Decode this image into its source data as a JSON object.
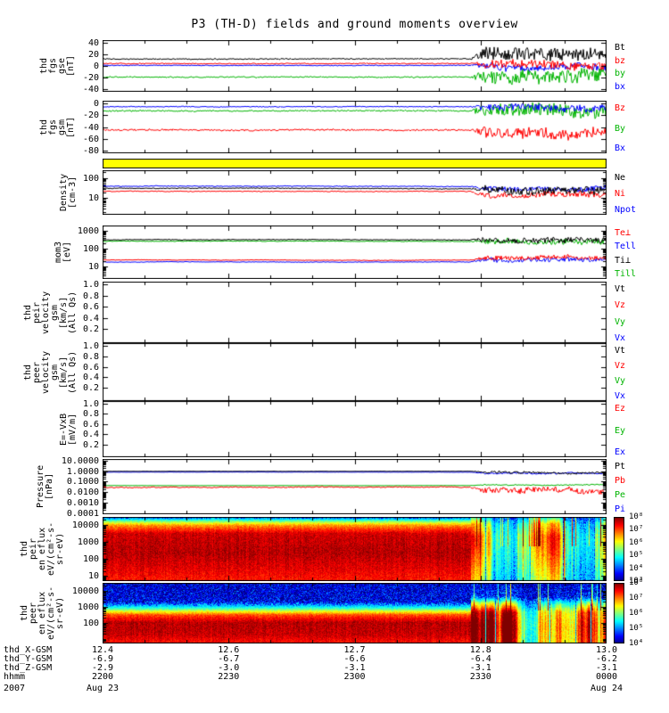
{
  "chart_data": {
    "type": "multi-panel-timeseries",
    "title": "P3 (TH-D) fields and ground moments overview",
    "disturb_start_frac": 0.73,
    "colors": {
      "black": "#000000",
      "red": "#ff0000",
      "green": "#00b400",
      "blue": "#0000ff",
      "yellow": "#ffff00"
    },
    "x_axis": {
      "major_fracs": [
        0,
        0.25,
        0.5,
        0.75,
        1
      ],
      "rows": [
        {
          "label": "thd_X-GSM",
          "values": [
            "12.4",
            "12.6",
            "12.7",
            "12.8",
            "13.0"
          ]
        },
        {
          "label": "thd_Y-GSM",
          "values": [
            "-6.9",
            "-6.7",
            "-6.6",
            "-6.4",
            "-6.2"
          ]
        },
        {
          "label": "thd_Z-GSM",
          "values": [
            "-2.9",
            "-3.0",
            "-3.1",
            "-3.1",
            "-3.1"
          ]
        },
        {
          "label": "hhmm",
          "values": [
            "2200",
            "2230",
            "2300",
            "2330",
            "0000"
          ]
        },
        {
          "label": "2007",
          "values": [
            "Aug 23",
            "",
            "",
            "",
            "Aug 24"
          ]
        }
      ]
    },
    "panels": [
      {
        "id": "fgs-gse",
        "type": "line",
        "scale": "linear",
        "range": [
          44,
          -44
        ],
        "ylabel": "thd\nfgs\ngse\n[nT]",
        "yticks": [
          {
            "v": 40,
            "l": "40"
          },
          {
            "v": 20,
            "l": "20"
          },
          {
            "v": 0,
            "l": "0"
          },
          {
            "v": -20,
            "l": "-20"
          },
          {
            "v": -40,
            "l": "-40"
          }
        ],
        "legend": [
          {
            "t": "Bt",
            "c": "#000000"
          },
          {
            "t": "bz",
            "c": "#ff0000"
          },
          {
            "t": "by",
            "c": "#00b400"
          },
          {
            "t": "bx",
            "c": "#0000ff"
          }
        ],
        "series": [
          {
            "t": "bx",
            "c": "#0000ff",
            "base": 1,
            "wander": 0.12,
            "noise": 0.7,
            "dbase": 0,
            "dnoise": 6,
            "dwander": 1.5
          },
          {
            "t": "by",
            "c": "#00b400",
            "base": -19,
            "wander": 0.18,
            "noise": 1.1,
            "dbase": -16,
            "dnoise": 12,
            "dwander": 2
          },
          {
            "t": "bz",
            "c": "#ff0000",
            "base": 4,
            "wander": 0.1,
            "noise": 0.9,
            "dbase": 2,
            "dnoise": 7,
            "dwander": 1.5
          },
          {
            "t": "Bt",
            "c": "#000000",
            "base": 12,
            "wander": 0.12,
            "noise": 0.9,
            "dbase": 20,
            "dnoise": 11,
            "dwander": 2
          }
        ]
      },
      {
        "id": "fgs-gsm",
        "type": "line",
        "scale": "linear",
        "range": [
          4,
          -84
        ],
        "ylabel": "thd\nfgs\ngsm\n[nT]",
        "yticks": [
          {
            "v": 0,
            "l": "0"
          },
          {
            "v": -20,
            "l": "-20"
          },
          {
            "v": -40,
            "l": "-40"
          },
          {
            "v": -60,
            "l": "-60"
          },
          {
            "v": -80,
            "l": "-80"
          }
        ],
        "legend": [
          {
            "t": "Bz",
            "c": "#ff0000"
          },
          {
            "t": "By",
            "c": "#00b400"
          },
          {
            "t": "Bx",
            "c": "#0000ff"
          }
        ],
        "series": [
          {
            "t": "By",
            "c": "#00b400",
            "base": -13,
            "wander": 0.15,
            "noise": 1.2,
            "dbase": -14,
            "dnoise": 11,
            "dwander": 2
          },
          {
            "t": "Bx",
            "c": "#0000ff",
            "base": -6,
            "wander": 0.1,
            "noise": 0.8,
            "dbase": -8,
            "dnoise": 6,
            "dwander": 1.5
          },
          {
            "t": "Bz",
            "c": "#ff0000",
            "base": -45,
            "wander": 0.15,
            "noise": 1.4,
            "dbase": -48,
            "dnoise": 9,
            "dwander": 2
          }
        ]
      },
      {
        "id": "status-bar",
        "type": "fill",
        "color": "#ffff00"
      },
      {
        "id": "density",
        "type": "line",
        "scale": "log",
        "range": [
          250,
          1.5
        ],
        "ylabel": "Density\n[cm-3]",
        "yticks": [
          {
            "v": 100,
            "l": "100"
          },
          {
            "v": 10,
            "l": "10"
          }
        ],
        "legend": [
          {
            "t": "Ne",
            "c": "#000000"
          },
          {
            "t": "Ni",
            "c": "#ff0000"
          },
          {
            "t": "Npot",
            "c": "#0000ff"
          }
        ],
        "series": [
          {
            "t": "Npot",
            "c": "#0000ff",
            "base": 40,
            "wander": 0.006,
            "noise": 0.02,
            "dbase": 32,
            "dnoise": 0.12,
            "dwander": 0.03
          },
          {
            "t": "Ni",
            "c": "#ff0000",
            "base": 22,
            "wander": 0.006,
            "noise": 0.02,
            "dbase": 14,
            "dnoise": 0.15,
            "dwander": 0.04
          },
          {
            "t": "Ne",
            "c": "#000000",
            "base": 31,
            "wander": 0.006,
            "noise": 0.02,
            "dbase": 26,
            "dnoise": 0.2,
            "dwander": 0.05
          }
        ]
      },
      {
        "id": "temperature",
        "type": "line",
        "scale": "log",
        "range": [
          2000,
          2
        ],
        "ylabel": "mom3\n[eV]",
        "yticks": [
          {
            "v": 1000,
            "l": "1000"
          },
          {
            "v": 100,
            "l": "100"
          },
          {
            "v": 10,
            "l": "10"
          }
        ],
        "legend": [
          {
            "t": "Te⊥",
            "c": "#ff0000"
          },
          {
            "t": "Tell",
            "c": "#0000ff"
          },
          {
            "t": "Ti⊥",
            "c": "#000000"
          },
          {
            "t": "Till",
            "c": "#00b400"
          }
        ],
        "series": [
          {
            "t": "Tell",
            "c": "#0000ff",
            "base": 18,
            "wander": 0.005,
            "noise": 0.015,
            "dbase": 24,
            "dnoise": 0.12,
            "dwander": 0.03
          },
          {
            "t": "Te⊥",
            "c": "#ff0000",
            "base": 23,
            "wander": 0.005,
            "noise": 0.015,
            "dbase": 30,
            "dnoise": 0.12,
            "dwander": 0.03
          },
          {
            "t": "Till",
            "c": "#00b400",
            "base": 260,
            "wander": 0.006,
            "noise": 0.02,
            "dbase": 280,
            "dnoise": 0.15,
            "dwander": 0.04
          },
          {
            "t": "Ti⊥",
            "c": "#000000",
            "base": 310,
            "wander": 0.006,
            "noise": 0.02,
            "dbase": 330,
            "dnoise": 0.15,
            "dwander": 0.04
          }
        ]
      },
      {
        "id": "velocity-peir",
        "type": "empty",
        "scale": "linear",
        "range": [
          1.05,
          -0.05
        ],
        "ylabel": "thd\npeir\nvelocity\ngsm\n[km/s]\n(All Qs)",
        "yticks": [
          {
            "v": 1.0,
            "l": "1.0"
          },
          {
            "v": 0.8,
            "l": "0.8"
          },
          {
            "v": 0.6,
            "l": "0.6"
          },
          {
            "v": 0.4,
            "l": "0.4"
          },
          {
            "v": 0.2,
            "l": "0.2"
          }
        ],
        "legend": [
          {
            "t": "Vt",
            "c": "#000000"
          },
          {
            "t": "Vz",
            "c": "#ff0000"
          },
          {
            "t": "Vy",
            "c": "#00b400"
          },
          {
            "t": "Vx",
            "c": "#0000ff"
          }
        ]
      },
      {
        "id": "velocity-peer",
        "type": "empty",
        "scale": "linear",
        "range": [
          1.05,
          -0.05
        ],
        "ylabel": "thd\npeer\nvelocity\ngsm\n[km/s]\n(All Qs)",
        "yticks": [
          {
            "v": 1.0,
            "l": "1.0"
          },
          {
            "v": 0.8,
            "l": "0.8"
          },
          {
            "v": 0.6,
            "l": "0.6"
          },
          {
            "v": 0.4,
            "l": "0.4"
          },
          {
            "v": 0.2,
            "l": "0.2"
          }
        ],
        "legend": [
          {
            "t": "Vt",
            "c": "#000000"
          },
          {
            "t": "Vz",
            "c": "#ff0000"
          },
          {
            "t": "Vy",
            "c": "#00b400"
          },
          {
            "t": "Vx",
            "c": "#0000ff"
          }
        ]
      },
      {
        "id": "efield",
        "type": "empty",
        "scale": "linear",
        "range": [
          1.05,
          -0.05
        ],
        "ylabel": "E=-VxB\n[mV/m]",
        "yticks": [
          {
            "v": 1.0,
            "l": "1.0"
          },
          {
            "v": 0.8,
            "l": "0.8"
          },
          {
            "v": 0.6,
            "l": "0.6"
          },
          {
            "v": 0.4,
            "l": "0.4"
          },
          {
            "v": 0.2,
            "l": "0.2"
          }
        ],
        "legend": [
          {
            "t": "Ez",
            "c": "#ff0000"
          },
          {
            "t": "Ey",
            "c": "#00b400"
          },
          {
            "t": "Ex",
            "c": "#0000ff"
          }
        ]
      },
      {
        "id": "pressure",
        "type": "line",
        "scale": "log",
        "range": [
          14,
          8e-05
        ],
        "ylabel": "Pressure\n[nPa]",
        "yticks": [
          {
            "v": 10,
            "l": "10.0000"
          },
          {
            "v": 1,
            "l": "1.0000"
          },
          {
            "v": 0.1,
            "l": "0.1000"
          },
          {
            "v": 0.01,
            "l": "0.0100"
          },
          {
            "v": 0.001,
            "l": "0.0010"
          },
          {
            "v": 0.0001,
            "l": "0.0001"
          }
        ],
        "legend": [
          {
            "t": "Pt",
            "c": "#000000"
          },
          {
            "t": "Pb",
            "c": "#ff0000"
          },
          {
            "t": "Pe",
            "c": "#00b400"
          },
          {
            "t": "Pi",
            "c": "#0000ff"
          }
        ],
        "series": [
          {
            "t": "Pi",
            "c": "#0000ff",
            "base": 0.8,
            "wander": 0.004,
            "noise": 0.012,
            "dbase": 0.6,
            "dnoise": 0.08,
            "dwander": 0.02
          },
          {
            "t": "Pe",
            "c": "#00b400",
            "base": 0.042,
            "wander": 0.003,
            "noise": 0.008,
            "dbase": 0.05,
            "dnoise": 0.05,
            "dwander": 0.02
          },
          {
            "t": "Pb",
            "c": "#ff0000",
            "base": 0.028,
            "wander": 0.012,
            "noise": 0.05,
            "dbase": 0.012,
            "dnoise": 0.3,
            "dwander": 0.06
          },
          {
            "t": "Pt",
            "c": "#000000",
            "base": 0.95,
            "wander": 0.003,
            "noise": 0.01,
            "dbase": 0.75,
            "dnoise": 0.1,
            "dwander": 0.03
          }
        ]
      },
      {
        "id": "peir-eflux",
        "type": "spectrogram",
        "scale": "log",
        "range": [
          30000,
          5
        ],
        "ylabel": "thd\npeir\nen eflux\neV/(cm²-s-\nsr-eV)",
        "yticks": [
          {
            "v": 10000,
            "l": "10000"
          },
          {
            "v": 1000,
            "l": "1000"
          },
          {
            "v": 100,
            "l": "100"
          },
          {
            "v": 10,
            "l": "10"
          }
        ],
        "colorbar": {
          "ticks": [
            "10⁸",
            "10⁷",
            "10⁶",
            "10⁵",
            "10⁴",
            "10³"
          ]
        },
        "profile_quiet": [
          [
            0,
            0.18
          ],
          [
            0.05,
            0.45
          ],
          [
            0.12,
            0.72
          ],
          [
            0.25,
            0.92
          ],
          [
            0.55,
            0.95
          ],
          [
            0.8,
            0.9
          ],
          [
            1,
            0.85
          ]
        ],
        "profile_disturbed": [
          [
            0,
            0.4
          ],
          [
            0.1,
            0.65
          ],
          [
            0.3,
            0.8
          ],
          [
            0.5,
            0.78
          ],
          [
            0.75,
            0.7
          ],
          [
            1,
            0.62
          ]
        ]
      },
      {
        "id": "peer-eflux",
        "type": "spectrogram",
        "scale": "log",
        "range": [
          30000,
          5
        ],
        "ylabel": "thd\npeer\nen eflux\neV/(cm²-s-\nsr-eV)",
        "yticks": [
          {
            "v": 10000,
            "l": "10000"
          },
          {
            "v": 1000,
            "l": "1000"
          },
          {
            "v": 100,
            "l": "100"
          }
        ],
        "colorbar": {
          "ticks": [
            "10⁸",
            "10⁷",
            "10⁶",
            "10⁵",
            "10⁴"
          ]
        },
        "profile_quiet": [
          [
            0,
            0.08
          ],
          [
            0.3,
            0.1
          ],
          [
            0.42,
            0.45
          ],
          [
            0.52,
            0.8
          ],
          [
            0.65,
            0.95
          ],
          [
            0.85,
            0.93
          ],
          [
            1,
            0.85
          ]
        ],
        "profile_disturbed": [
          [
            0,
            0.1
          ],
          [
            0.22,
            0.18
          ],
          [
            0.33,
            0.55
          ],
          [
            0.48,
            0.88
          ],
          [
            0.7,
            0.95
          ],
          [
            1,
            0.9
          ]
        ]
      }
    ]
  }
}
